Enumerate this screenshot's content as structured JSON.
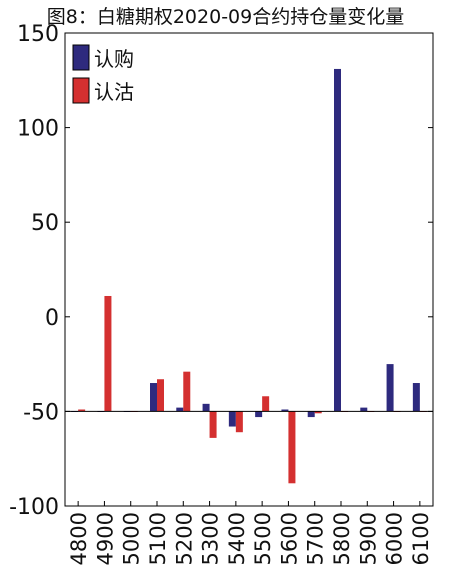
{
  "chart_data": {
    "type": "bar",
    "title": "图8：白糖期权2020-09合约持仓量变化量",
    "xlabel": "",
    "ylabel": "",
    "categories": [
      "4800",
      "4900",
      "5000",
      "5100",
      "5200",
      "5300",
      "5400",
      "5500",
      "5600",
      "5700",
      "5800",
      "5900",
      "6000",
      "6100"
    ],
    "ylim": [
      -100,
      150
    ],
    "yticks": [
      -100,
      -50,
      0,
      50,
      100,
      150
    ],
    "baseline": -50,
    "legend_position": "top-left",
    "grid": false,
    "series": [
      {
        "name": "认购",
        "color": "#2e2a7e",
        "values": [
          -50,
          -50,
          -50,
          -35,
          -48,
          -46,
          -58,
          -53,
          -49,
          -53,
          131,
          -48,
          -25,
          -35
        ]
      },
      {
        "name": "认沽",
        "color": "#d43030",
        "values": [
          -49,
          11,
          -50,
          -33,
          -29,
          -64,
          -61,
          -42,
          -88,
          -51,
          -50,
          -50,
          -50,
          -50
        ]
      }
    ]
  }
}
